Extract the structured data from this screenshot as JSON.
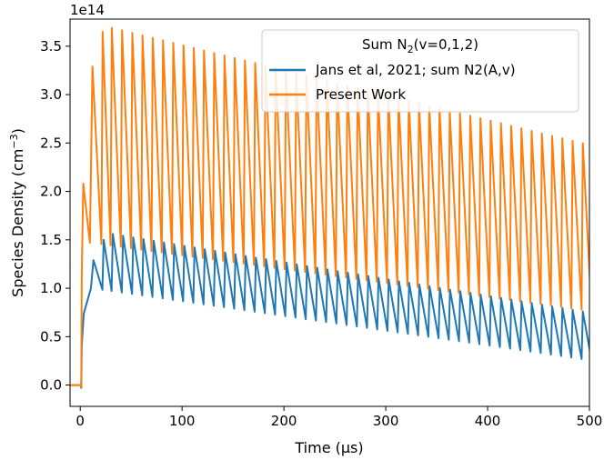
{
  "chart_data": {
    "type": "line",
    "xlabel": "Time (μs)",
    "ylabel": "Species Density (cm⁻³)",
    "ylabel_main": "Species Density (cm",
    "ylabel_sup": "−3",
    "ylabel_end": ")",
    "y_offset_text": "1e14",
    "y_scale_factor": 100000000000000.0,
    "xlim": [
      -10,
      500
    ],
    "ylim": [
      -0.22,
      3.78
    ],
    "x_ticks": [
      0,
      100,
      200,
      300,
      400,
      500
    ],
    "y_ticks": [
      0.0,
      0.5,
      1.0,
      1.5,
      2.0,
      2.5,
      3.0,
      3.5
    ],
    "grid": false,
    "legend": {
      "placement": "top-right",
      "title_prefix": "Sum N",
      "title_sub": "2",
      "title_suffix": "(v=0,1,2)"
    },
    "series": [
      {
        "name": "Jans et al, 2021; sum N2(A,v)",
        "color": "#1f77b4",
        "pre_pulse_level": 0.0,
        "dip_time": 1.0,
        "dip_value": -0.03,
        "first_pulse_start": 1.5,
        "burst_end": 10.0,
        "pulse_period": 10.0,
        "pulse_count": 50,
        "early_peaks": [
          {
            "t": 3.5,
            "v": 0.74
          },
          {
            "t": 13.0,
            "v": 1.29
          },
          {
            "t": 23.0,
            "v": 1.5
          },
          {
            "t": 32.0,
            "v": 1.56
          }
        ],
        "peak_end_value": 0.75,
        "min_start_value": 1.0,
        "min_end_value": 0.26
      },
      {
        "name": "Present Work",
        "color": "#ff7f0e",
        "pre_pulse_level": 0.0,
        "dip_time": 1.0,
        "dip_value": -0.02,
        "first_pulse_start": 1.5,
        "burst_end": 10.0,
        "pulse_period": 10.0,
        "pulse_count": 50,
        "early_peaks": [
          {
            "t": 3.0,
            "v": 2.08
          },
          {
            "t": 12.0,
            "v": 3.29
          },
          {
            "t": 22.0,
            "v": 3.65
          },
          {
            "t": 31.0,
            "v": 3.69
          }
        ],
        "peak_end_value": 2.48,
        "min_start_value": 1.47,
        "min_end_value": 0.77
      }
    ]
  }
}
